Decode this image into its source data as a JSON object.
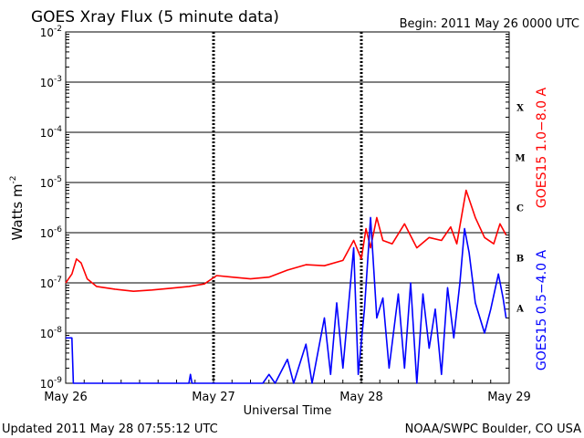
{
  "header": {
    "title": "GOES Xray Flux (5 minute data)",
    "begin": "Begin:  2011 May 26 0000 UTC"
  },
  "footer": {
    "updated": "Updated 2011 May 28 07:55:12 UTC",
    "source": "NOAA/SWPC Boulder, CO USA"
  },
  "axes": {
    "ylabel": "Watts m",
    "ylabel_sup": "-2",
    "xlabel": "Universal Time",
    "x_ticks": [
      "May 26",
      "May 27",
      "May 28",
      "May 29"
    ],
    "y_ticks": [
      {
        "base": "10",
        "exp": "-2"
      },
      {
        "base": "10",
        "exp": "-3"
      },
      {
        "base": "10",
        "exp": "-4"
      },
      {
        "base": "10",
        "exp": "-5"
      },
      {
        "base": "10",
        "exp": "-6"
      },
      {
        "base": "10",
        "exp": "-7"
      },
      {
        "base": "10",
        "exp": "-8"
      },
      {
        "base": "10",
        "exp": "-9"
      }
    ],
    "class_labels": [
      "X",
      "M",
      "C",
      "B",
      "A"
    ]
  },
  "legend": {
    "long": "GOES15 1.0−8.0 A",
    "short": "GOES15 0.5−4.0 A"
  },
  "chart_data": {
    "type": "line",
    "title": "GOES Xray Flux (5 minute data)",
    "xlabel": "Universal Time",
    "ylabel": "Watts m-2",
    "y_scale": "log",
    "ylim": [
      1e-09,
      0.01
    ],
    "xlim": [
      "2011-05-26T00:00",
      "2011-05-29T00:00"
    ],
    "grid": true,
    "series": [
      {
        "name": "GOES15 1.0−8.0 A",
        "color": "#ff0000",
        "points": [
          [
            "2011-05-26T00:00",
            1e-07
          ],
          [
            "2011-05-26T01:00",
            1.5e-07
          ],
          [
            "2011-05-26T01:45",
            3e-07
          ],
          [
            "2011-05-26T02:30",
            2.5e-07
          ],
          [
            "2011-05-26T03:30",
            1.2e-07
          ],
          [
            "2011-05-26T05:00",
            8.5e-08
          ],
          [
            "2011-05-26T08:00",
            7.5e-08
          ],
          [
            "2011-05-26T11:00",
            6.8e-08
          ],
          [
            "2011-05-26T14:00",
            7.2e-08
          ],
          [
            "2011-05-26T17:00",
            7.8e-08
          ],
          [
            "2011-05-26T20:00",
            8.5e-08
          ],
          [
            "2011-05-26T22:30",
            9.5e-08
          ],
          [
            "2011-05-27T00:30",
            1.4e-07
          ],
          [
            "2011-05-27T03:00",
            1.3e-07
          ],
          [
            "2011-05-27T06:00",
            1.2e-07
          ],
          [
            "2011-05-27T09:00",
            1.3e-07
          ],
          [
            "2011-05-27T12:00",
            1.8e-07
          ],
          [
            "2011-05-27T15:00",
            2.3e-07
          ],
          [
            "2011-05-27T18:00",
            2.2e-07
          ],
          [
            "2011-05-27T21:00",
            2.8e-07
          ],
          [
            "2011-05-27T22:45",
            7e-07
          ],
          [
            "2011-05-28T00:00",
            3e-07
          ],
          [
            "2011-05-28T00:45",
            1.2e-06
          ],
          [
            "2011-05-28T01:30",
            5e-07
          ],
          [
            "2011-05-28T02:30",
            2e-06
          ],
          [
            "2011-05-28T03:30",
            7e-07
          ],
          [
            "2011-05-28T05:00",
            6e-07
          ],
          [
            "2011-05-28T07:00",
            1.5e-06
          ],
          [
            "2011-05-28T09:00",
            5e-07
          ],
          [
            "2011-05-28T11:00",
            8e-07
          ],
          [
            "2011-05-28T13:00",
            7e-07
          ],
          [
            "2011-05-28T14:30",
            1.3e-06
          ],
          [
            "2011-05-28T15:30",
            6e-07
          ],
          [
            "2011-05-28T17:00",
            7e-06
          ],
          [
            "2011-05-28T18:30",
            2e-06
          ],
          [
            "2011-05-28T20:00",
            8e-07
          ],
          [
            "2011-05-28T21:30",
            6e-07
          ],
          [
            "2011-05-28T22:30",
            1.5e-06
          ],
          [
            "2011-05-28T23:30",
            9e-07
          ]
        ]
      },
      {
        "name": "GOES15 0.5−4.0 A",
        "color": "#0000ff",
        "points": [
          [
            "2011-05-26T00:00",
            8e-09
          ],
          [
            "2011-05-26T01:00",
            8e-09
          ],
          [
            "2011-05-26T01:15",
            1e-09
          ],
          [
            "2011-05-26T20:00",
            1e-09
          ],
          [
            "2011-05-26T20:15",
            1.5e-09
          ],
          [
            "2011-05-26T20:30",
            1e-09
          ],
          [
            "2011-05-27T08:00",
            1e-09
          ],
          [
            "2011-05-27T09:00",
            1.5e-09
          ],
          [
            "2011-05-27T10:00",
            1e-09
          ],
          [
            "2011-05-27T12:00",
            3e-09
          ],
          [
            "2011-05-27T13:00",
            1e-09
          ],
          [
            "2011-05-27T15:00",
            6e-09
          ],
          [
            "2011-05-27T16:00",
            1e-09
          ],
          [
            "2011-05-27T18:00",
            2e-08
          ],
          [
            "2011-05-27T19:00",
            1.5e-09
          ],
          [
            "2011-05-27T20:00",
            4e-08
          ],
          [
            "2011-05-27T21:00",
            2e-09
          ],
          [
            "2011-05-27T22:45",
            5e-07
          ],
          [
            "2011-05-27T23:30",
            1.5e-09
          ],
          [
            "2011-05-28T00:30",
            3e-08
          ],
          [
            "2011-05-28T01:30",
            2e-06
          ],
          [
            "2011-05-28T02:30",
            2e-08
          ],
          [
            "2011-05-28T03:30",
            5e-08
          ],
          [
            "2011-05-28T04:30",
            2e-09
          ],
          [
            "2011-05-28T06:00",
            6e-08
          ],
          [
            "2011-05-28T07:00",
            2e-09
          ],
          [
            "2011-05-28T08:00",
            1e-07
          ],
          [
            "2011-05-28T09:00",
            1e-09
          ],
          [
            "2011-05-28T10:00",
            6e-08
          ],
          [
            "2011-05-28T11:00",
            5e-09
          ],
          [
            "2011-05-28T12:00",
            3e-08
          ],
          [
            "2011-05-28T13:00",
            1.5e-09
          ],
          [
            "2011-05-28T14:00",
            8e-08
          ],
          [
            "2011-05-28T15:00",
            8e-09
          ],
          [
            "2011-05-28T16:00",
            1e-07
          ],
          [
            "2011-05-28T16:45",
            1.2e-06
          ],
          [
            "2011-05-28T17:30",
            4e-07
          ],
          [
            "2011-05-28T18:30",
            4e-08
          ],
          [
            "2011-05-28T20:00",
            1e-08
          ],
          [
            "2011-05-28T21:00",
            3e-08
          ],
          [
            "2011-05-28T22:15",
            1.5e-07
          ],
          [
            "2011-05-28T23:00",
            5e-08
          ],
          [
            "2011-05-28T23:30",
            2e-08
          ]
        ]
      }
    ]
  }
}
